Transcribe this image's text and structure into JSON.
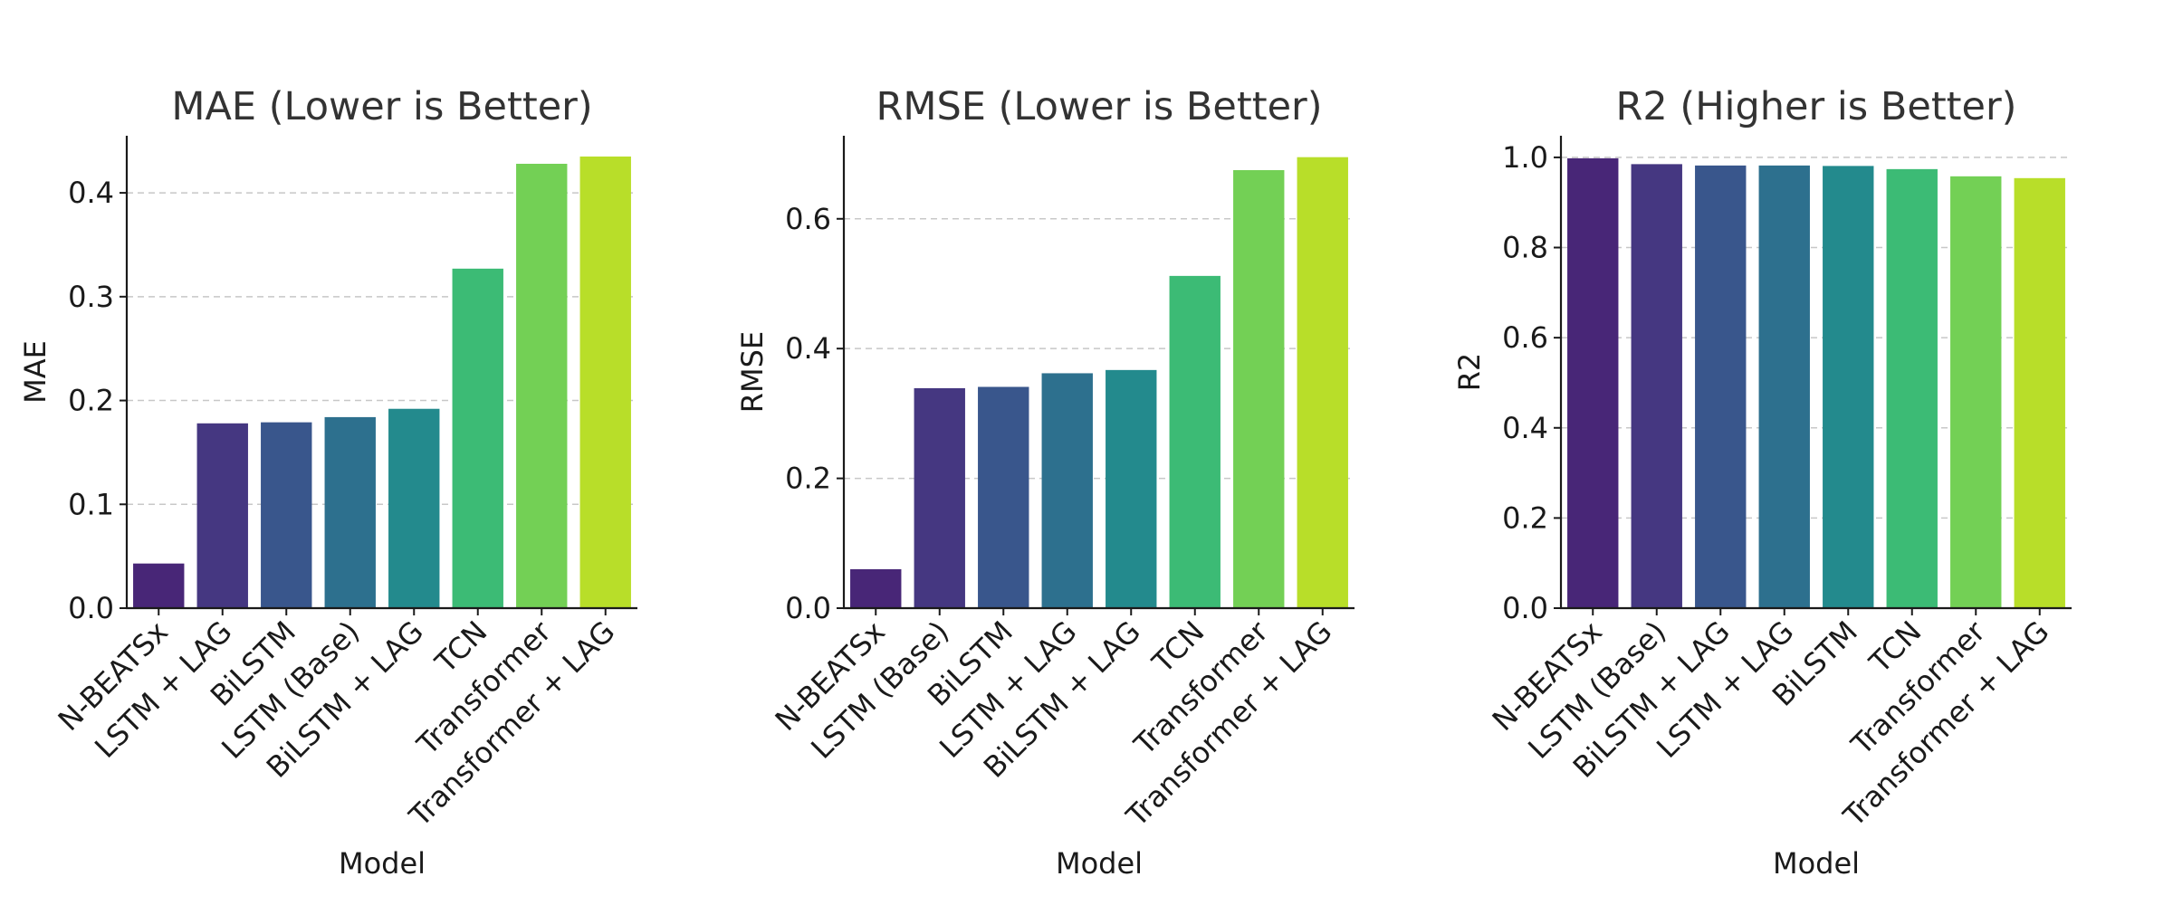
{
  "chart_data": [
    {
      "type": "bar",
      "title": "MAE (Lower is Better)",
      "xlabel": "Model",
      "ylabel": "MAE",
      "ylim": [
        0,
        0.455
      ],
      "yticks": [
        "0.0",
        "0.1",
        "0.2",
        "0.3",
        "0.4"
      ],
      "ytick_values": [
        0,
        0.1,
        0.2,
        0.3,
        0.4
      ],
      "grid": "y-dashed",
      "categories": [
        "N-BEATSx",
        "LSTM + LAG",
        "BiLSTM",
        "LSTM (Base)",
        "BiLSTM + LAG",
        "TCN",
        "Transformer",
        "Transformer + LAG"
      ],
      "values": [
        0.043,
        0.178,
        0.179,
        0.184,
        0.192,
        0.327,
        0.428,
        0.435
      ],
      "colors": [
        "#482677",
        "#453781",
        "#39568c",
        "#2d708e",
        "#238a8d",
        "#3cbb75",
        "#73d055",
        "#b8de29"
      ]
    },
    {
      "type": "bar",
      "title": "RMSE (Lower is Better)",
      "xlabel": "Model",
      "ylabel": "RMSE",
      "ylim": [
        0,
        0.728
      ],
      "yticks": [
        "0.0",
        "0.2",
        "0.4",
        "0.6"
      ],
      "ytick_values": [
        0,
        0.2,
        0.4,
        0.6
      ],
      "grid": "y-dashed",
      "categories": [
        "N-BEATSx",
        "LSTM (Base)",
        "BiLSTM",
        "LSTM + LAG",
        "BiLSTM + LAG",
        "TCN",
        "Transformer",
        "Transformer + LAG"
      ],
      "values": [
        0.06,
        0.339,
        0.341,
        0.362,
        0.367,
        0.512,
        0.675,
        0.695
      ],
      "colors": [
        "#482677",
        "#453781",
        "#39568c",
        "#2d708e",
        "#238a8d",
        "#3cbb75",
        "#73d055",
        "#b8de29"
      ]
    },
    {
      "type": "bar",
      "title": "R2 (Higher is Better)",
      "xlabel": "Model",
      "ylabel": "R2",
      "ylim": [
        0,
        1.048
      ],
      "yticks": [
        "0.0",
        "0.2",
        "0.4",
        "0.6",
        "0.8",
        "1.0"
      ],
      "ytick_values": [
        0,
        0.2,
        0.4,
        0.6,
        0.8,
        1.0
      ],
      "grid": "y-dashed",
      "categories": [
        "N-BEATSx",
        "LSTM (Base)",
        "BiLSTM + LAG",
        "LSTM + LAG",
        "BiLSTM",
        "TCN",
        "Transformer",
        "Transformer + LAG"
      ],
      "values": [
        0.998,
        0.985,
        0.982,
        0.982,
        0.981,
        0.974,
        0.958,
        0.954
      ],
      "colors": [
        "#482677",
        "#453781",
        "#39568c",
        "#2d708e",
        "#238a8d",
        "#3cbb75",
        "#73d055",
        "#b8de29"
      ]
    }
  ]
}
